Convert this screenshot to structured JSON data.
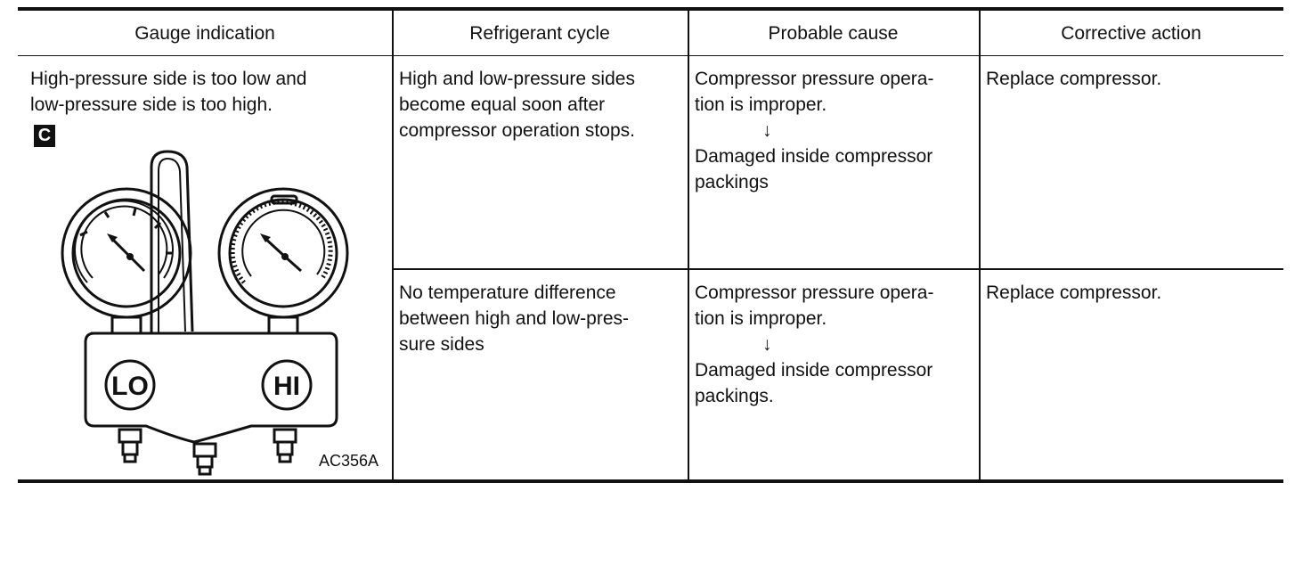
{
  "headers": {
    "gauge": "Gauge indication",
    "cycle": "Refrigerant cycle",
    "cause": "Probable cause",
    "action": "Corrective action"
  },
  "gauge_indication": {
    "line1": "High-pressure side is too low and",
    "line2": "low-pressure side is too high.",
    "badge": "C",
    "figure_code": "AC356A",
    "lo_label": "LO",
    "hi_label": "HI"
  },
  "rows": [
    {
      "cycle": [
        "High and low-pressure sides",
        "become equal soon after",
        "compressor operation stops."
      ],
      "cause": [
        "Compressor pressure opera-",
        "tion is improper.",
        "↓",
        "Damaged inside compressor",
        "packings"
      ],
      "action": "Replace compressor."
    },
    {
      "cycle": [
        "No temperature difference",
        "between high and low-pres-",
        "sure sides"
      ],
      "cause": [
        "Compressor pressure opera-",
        "tion is improper.",
        "↓",
        "Damaged inside compressor",
        "packings."
      ],
      "action": "Replace compressor."
    }
  ]
}
